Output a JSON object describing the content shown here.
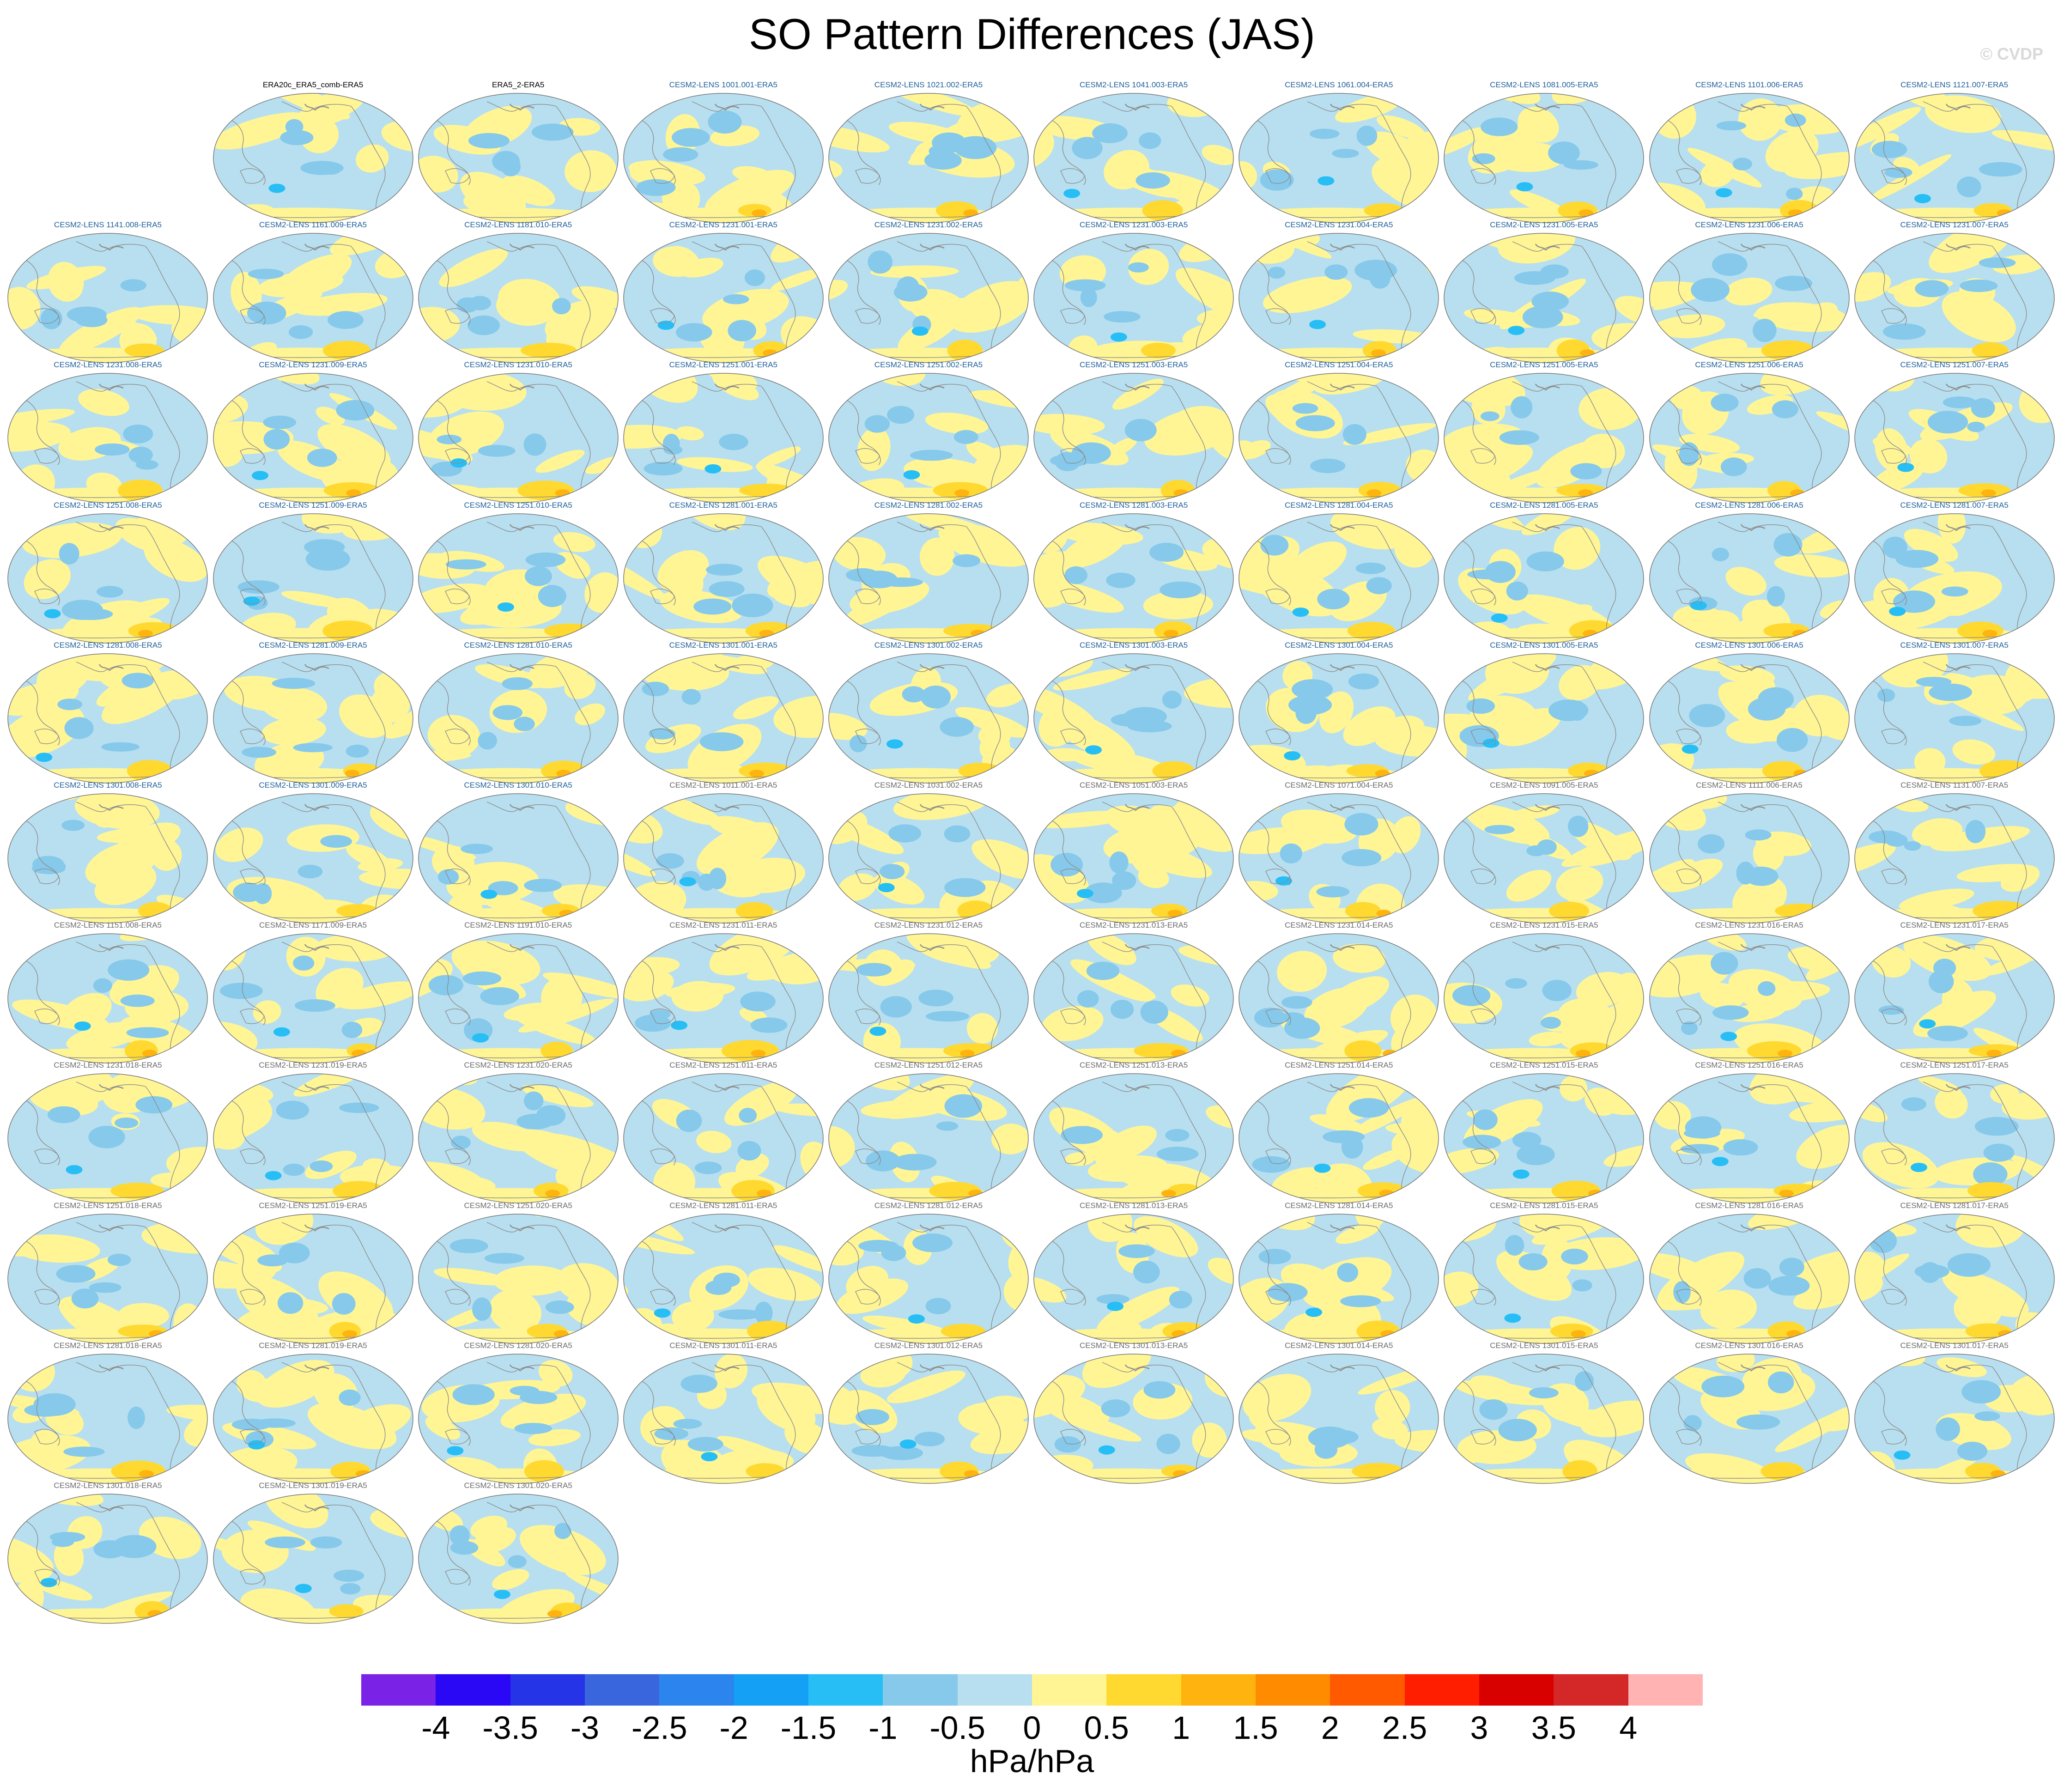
{
  "title": "SO Pattern Differences (JAS)",
  "credit": "© CVDP",
  "units": "hPa/hPa",
  "colors": {
    "land_outline": "#8c8c8c",
    "title_obs": "#000000",
    "title_model_blue": "#1f5f9a",
    "title_model_gray": "#6b6b6b"
  },
  "chart_data": {
    "type": "heatmap",
    "projection": "Robinson (Pacific-centred)",
    "colorbar": {
      "ticks": [
        "-4",
        "-3.5",
        "-3",
        "-2.5",
        "-2",
        "-1.5",
        "-1",
        "-0.5",
        "0",
        "0.5",
        "1",
        "1.5",
        "2",
        "2.5",
        "3",
        "3.5",
        "4"
      ],
      "colors": [
        "#7a22e6",
        "#2a08f5",
        "#2434e6",
        "#3a66dd",
        "#2c85ee",
        "#13a0f5",
        "#27bef6",
        "#86c9eb",
        "#b8dfef",
        "#fff595",
        "#ffd92f",
        "#ffb30f",
        "#ff8c00",
        "#ff5a00",
        "#ff1e00",
        "#d90000",
        "#d42828",
        "#ffb3b3"
      ],
      "label": "hPa/hPa"
    },
    "panels": [
      {
        "label": "ERA20c_ERA5_comb-ERA5",
        "group": "obs"
      },
      {
        "label": "ERA5_2-ERA5",
        "group": "obs"
      },
      {
        "label": "CESM2-LENS 1001.001-ERA5",
        "group": "a"
      },
      {
        "label": "CESM2-LENS 1021.002-ERA5",
        "group": "a"
      },
      {
        "label": "CESM2-LENS 1041.003-ERA5",
        "group": "a"
      },
      {
        "label": "CESM2-LENS 1061.004-ERA5",
        "group": "a"
      },
      {
        "label": "CESM2-LENS 1081.005-ERA5",
        "group": "a"
      },
      {
        "label": "CESM2-LENS 1101.006-ERA5",
        "group": "a"
      },
      {
        "label": "CESM2-LENS 1121.007-ERA5",
        "group": "a"
      },
      {
        "label": "CESM2-LENS 1141.008-ERA5",
        "group": "a"
      },
      {
        "label": "CESM2-LENS 1161.009-ERA5",
        "group": "a"
      },
      {
        "label": "CESM2-LENS 1181.010-ERA5",
        "group": "a"
      },
      {
        "label": "CESM2-LENS 1231.001-ERA5",
        "group": "a"
      },
      {
        "label": "CESM2-LENS 1231.002-ERA5",
        "group": "a"
      },
      {
        "label": "CESM2-LENS 1231.003-ERA5",
        "group": "a"
      },
      {
        "label": "CESM2-LENS 1231.004-ERA5",
        "group": "a"
      },
      {
        "label": "CESM2-LENS 1231.005-ERA5",
        "group": "a"
      },
      {
        "label": "CESM2-LENS 1231.006-ERA5",
        "group": "a"
      },
      {
        "label": "CESM2-LENS 1231.007-ERA5",
        "group": "a"
      },
      {
        "label": "CESM2-LENS 1231.008-ERA5",
        "group": "a"
      },
      {
        "label": "CESM2-LENS 1231.009-ERA5",
        "group": "a"
      },
      {
        "label": "CESM2-LENS 1231.010-ERA5",
        "group": "a"
      },
      {
        "label": "CESM2-LENS 1251.001-ERA5",
        "group": "a"
      },
      {
        "label": "CESM2-LENS 1251.002-ERA5",
        "group": "a"
      },
      {
        "label": "CESM2-LENS 1251.003-ERA5",
        "group": "a"
      },
      {
        "label": "CESM2-LENS 1251.004-ERA5",
        "group": "a"
      },
      {
        "label": "CESM2-LENS 1251.005-ERA5",
        "group": "a"
      },
      {
        "label": "CESM2-LENS 1251.006-ERA5",
        "group": "a"
      },
      {
        "label": "CESM2-LENS 1251.007-ERA5",
        "group": "a"
      },
      {
        "label": "CESM2-LENS 1251.008-ERA5",
        "group": "a"
      },
      {
        "label": "CESM2-LENS 1251.009-ERA5",
        "group": "a"
      },
      {
        "label": "CESM2-LENS 1251.010-ERA5",
        "group": "a"
      },
      {
        "label": "CESM2-LENS 1281.001-ERA5",
        "group": "a"
      },
      {
        "label": "CESM2-LENS 1281.002-ERA5",
        "group": "a"
      },
      {
        "label": "CESM2-LENS 1281.003-ERA5",
        "group": "a"
      },
      {
        "label": "CESM2-LENS 1281.004-ERA5",
        "group": "a"
      },
      {
        "label": "CESM2-LENS 1281.005-ERA5",
        "group": "a"
      },
      {
        "label": "CESM2-LENS 1281.006-ERA5",
        "group": "a"
      },
      {
        "label": "CESM2-LENS 1281.007-ERA5",
        "group": "a"
      },
      {
        "label": "CESM2-LENS 1281.008-ERA5",
        "group": "a"
      },
      {
        "label": "CESM2-LENS 1281.009-ERA5",
        "group": "a"
      },
      {
        "label": "CESM2-LENS 1281.010-ERA5",
        "group": "a"
      },
      {
        "label": "CESM2-LENS 1301.001-ERA5",
        "group": "a"
      },
      {
        "label": "CESM2-LENS 1301.002-ERA5",
        "group": "a"
      },
      {
        "label": "CESM2-LENS 1301.003-ERA5",
        "group": "a"
      },
      {
        "label": "CESM2-LENS 1301.004-ERA5",
        "group": "a"
      },
      {
        "label": "CESM2-LENS 1301.005-ERA5",
        "group": "a"
      },
      {
        "label": "CESM2-LENS 1301.006-ERA5",
        "group": "a"
      },
      {
        "label": "CESM2-LENS 1301.007-ERA5",
        "group": "a"
      },
      {
        "label": "CESM2-LENS 1301.008-ERA5",
        "group": "a"
      },
      {
        "label": "CESM2-LENS 1301.009-ERA5",
        "group": "a"
      },
      {
        "label": "CESM2-LENS 1301.010-ERA5",
        "group": "a"
      },
      {
        "label": "CESM2-LENS 1011.001-ERA5",
        "group": "b"
      },
      {
        "label": "CESM2-LENS 1031.002-ERA5",
        "group": "b"
      },
      {
        "label": "CESM2-LENS 1051.003-ERA5",
        "group": "b"
      },
      {
        "label": "CESM2-LENS 1071.004-ERA5",
        "group": "b"
      },
      {
        "label": "CESM2-LENS 1091.005-ERA5",
        "group": "b"
      },
      {
        "label": "CESM2-LENS 1111.006-ERA5",
        "group": "b"
      },
      {
        "label": "CESM2-LENS 1131.007-ERA5",
        "group": "b"
      },
      {
        "label": "CESM2-LENS 1151.008-ERA5",
        "group": "b"
      },
      {
        "label": "CESM2-LENS 1171.009-ERA5",
        "group": "b"
      },
      {
        "label": "CESM2-LENS 1191.010-ERA5",
        "group": "b"
      },
      {
        "label": "CESM2-LENS 1231.011-ERA5",
        "group": "b"
      },
      {
        "label": "CESM2-LENS 1231.012-ERA5",
        "group": "b"
      },
      {
        "label": "CESM2-LENS 1231.013-ERA5",
        "group": "b"
      },
      {
        "label": "CESM2-LENS 1231.014-ERA5",
        "group": "b"
      },
      {
        "label": "CESM2-LENS 1231.015-ERA5",
        "group": "b"
      },
      {
        "label": "CESM2-LENS 1231.016-ERA5",
        "group": "b"
      },
      {
        "label": "CESM2-LENS 1231.017-ERA5",
        "group": "b"
      },
      {
        "label": "CESM2-LENS 1231.018-ERA5",
        "group": "b"
      },
      {
        "label": "CESM2-LENS 1231.019-ERA5",
        "group": "b"
      },
      {
        "label": "CESM2-LENS 1231.020-ERA5",
        "group": "b"
      },
      {
        "label": "CESM2-LENS 1251.011-ERA5",
        "group": "b"
      },
      {
        "label": "CESM2-LENS 1251.012-ERA5",
        "group": "b"
      },
      {
        "label": "CESM2-LENS 1251.013-ERA5",
        "group": "b"
      },
      {
        "label": "CESM2-LENS 1251.014-ERA5",
        "group": "b"
      },
      {
        "label": "CESM2-LENS 1251.015-ERA5",
        "group": "b"
      },
      {
        "label": "CESM2-LENS 1251.016-ERA5",
        "group": "b"
      },
      {
        "label": "CESM2-LENS 1251.017-ERA5",
        "group": "b"
      },
      {
        "label": "CESM2-LENS 1251.018-ERA5",
        "group": "b"
      },
      {
        "label": "CESM2-LENS 1251.019-ERA5",
        "group": "b"
      },
      {
        "label": "CESM2-LENS 1251.020-ERA5",
        "group": "b"
      },
      {
        "label": "CESM2-LENS 1281.011-ERA5",
        "group": "b"
      },
      {
        "label": "CESM2-LENS 1281.012-ERA5",
        "group": "b"
      },
      {
        "label": "CESM2-LENS 1281.013-ERA5",
        "group": "b"
      },
      {
        "label": "CESM2-LENS 1281.014-ERA5",
        "group": "b"
      },
      {
        "label": "CESM2-LENS 1281.015-ERA5",
        "group": "b"
      },
      {
        "label": "CESM2-LENS 1281.016-ERA5",
        "group": "b"
      },
      {
        "label": "CESM2-LENS 1281.017-ERA5",
        "group": "b"
      },
      {
        "label": "CESM2-LENS 1281.018-ERA5",
        "group": "b"
      },
      {
        "label": "CESM2-LENS 1281.019-ERA5",
        "group": "b"
      },
      {
        "label": "CESM2-LENS 1281.020-ERA5",
        "group": "b"
      },
      {
        "label": "CESM2-LENS 1301.011-ERA5",
        "group": "b"
      },
      {
        "label": "CESM2-LENS 1301.012-ERA5",
        "group": "b"
      },
      {
        "label": "CESM2-LENS 1301.013-ERA5",
        "group": "b"
      },
      {
        "label": "CESM2-LENS 1301.014-ERA5",
        "group": "b"
      },
      {
        "label": "CESM2-LENS 1301.015-ERA5",
        "group": "b"
      },
      {
        "label": "CESM2-LENS 1301.016-ERA5",
        "group": "b"
      },
      {
        "label": "CESM2-LENS 1301.017-ERA5",
        "group": "b"
      },
      {
        "label": "CESM2-LENS 1301.018-ERA5",
        "group": "b"
      },
      {
        "label": "CESM2-LENS 1301.019-ERA5",
        "group": "b"
      },
      {
        "label": "CESM2-LENS 1301.020-ERA5",
        "group": "b"
      }
    ]
  }
}
